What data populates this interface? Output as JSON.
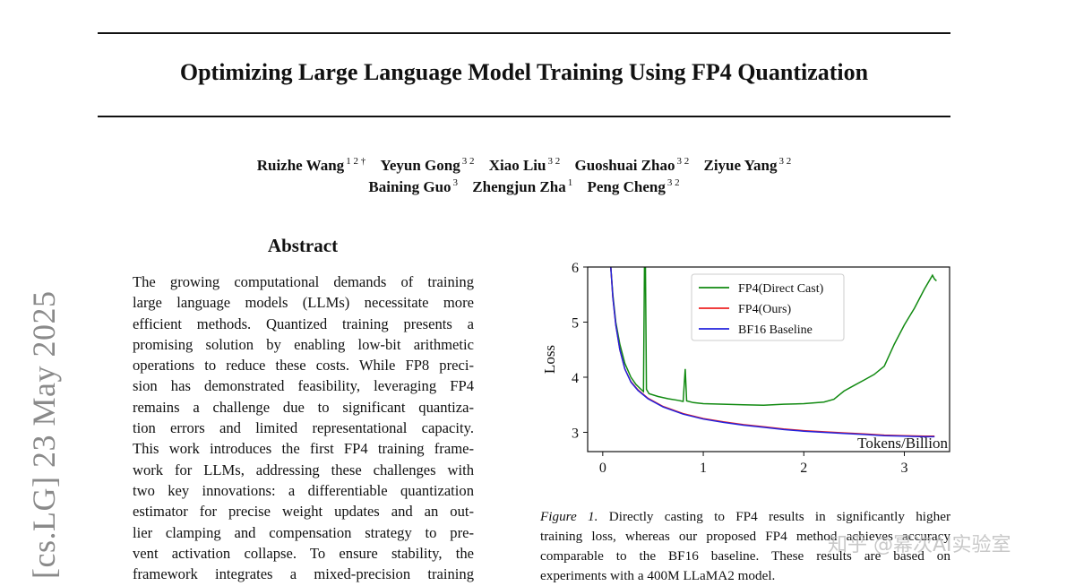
{
  "paper": {
    "title": "Optimizing Large Language Model Training Using FP4 Quantization",
    "authors_line1": [
      {
        "name": "Ruizhe Wang",
        "aff": "1 2 †"
      },
      {
        "name": "Yeyun Gong",
        "aff": "3 2"
      },
      {
        "name": "Xiao Liu",
        "aff": "3 2"
      },
      {
        "name": "Guoshuai Zhao",
        "aff": "3 2"
      },
      {
        "name": "Ziyue Yang",
        "aff": "3 2"
      }
    ],
    "authors_line2": [
      {
        "name": "Baining Guo",
        "aff": "3"
      },
      {
        "name": "Zhengjun Zha",
        "aff": "1"
      },
      {
        "name": "Peng Cheng",
        "aff": "3 2"
      }
    ],
    "arxiv_stamp": "[cs.LG]   23 May 2025",
    "abstract_heading": "Abstract",
    "abstract_lines": [
      "The growing computational demands of training",
      "large language models (LLMs) necessitate more",
      "efficient methods. Quantized training presents a",
      "promising solution by enabling low-bit arithmetic",
      "operations to reduce these costs. While FP8 preci-",
      "sion has demonstrated feasibility, leveraging FP4",
      "remains a challenge due to significant quantiza-",
      "tion errors and limited representational capacity.",
      "This work introduces the first FP4 training frame-",
      "work for LLMs, addressing these challenges with",
      "two key innovations: a differentiable quantization",
      "estimator for precise weight updates and an out-",
      "lier clamping and compensation strategy to pre-",
      "vent activation collapse. To ensure stability, the",
      "framework integrates a mixed-precision training"
    ],
    "caption": {
      "label": "Figure 1.",
      "lines": [
        "Directly casting to FP4 results in significantly higher",
        "training loss, whereas our proposed FP4 method achieves accuracy",
        "comparable to the BF16 baseline.  These results are based on",
        "experiments with a 400M LLaMA2 model."
      ]
    },
    "watermark": "知乎 @幂次AI实验室"
  },
  "chart_data": {
    "type": "line",
    "xlabel": "Tokens/Billion",
    "ylabel": "Loss",
    "xlim": [
      -0.15,
      3.45
    ],
    "ylim": [
      2.65,
      6.0
    ],
    "xticks": [
      0,
      1,
      2,
      3
    ],
    "yticks": [
      3,
      4,
      5,
      6
    ],
    "grid": false,
    "legend_position": "top-center",
    "series": [
      {
        "name": "FP4(Direct Cast)",
        "color": "#118a11",
        "points": [
          [
            0.08,
            6.0
          ],
          [
            0.1,
            5.5
          ],
          [
            0.13,
            5.0
          ],
          [
            0.17,
            4.6
          ],
          [
            0.22,
            4.25
          ],
          [
            0.28,
            4.0
          ],
          [
            0.33,
            3.87
          ],
          [
            0.38,
            3.78
          ],
          [
            0.405,
            3.74
          ],
          [
            0.415,
            6.0
          ],
          [
            0.425,
            6.0
          ],
          [
            0.435,
            3.78
          ],
          [
            0.46,
            3.7
          ],
          [
            0.55,
            3.65
          ],
          [
            0.65,
            3.61
          ],
          [
            0.75,
            3.58
          ],
          [
            0.8,
            3.56
          ],
          [
            0.82,
            4.15
          ],
          [
            0.835,
            3.57
          ],
          [
            0.9,
            3.54
          ],
          [
            1.0,
            3.52
          ],
          [
            1.2,
            3.51
          ],
          [
            1.4,
            3.5
          ],
          [
            1.6,
            3.49
          ],
          [
            1.8,
            3.51
          ],
          [
            2.0,
            3.52
          ],
          [
            2.2,
            3.55
          ],
          [
            2.3,
            3.6
          ],
          [
            2.4,
            3.75
          ],
          [
            2.5,
            3.85
          ],
          [
            2.6,
            3.95
          ],
          [
            2.7,
            4.05
          ],
          [
            2.8,
            4.2
          ],
          [
            2.9,
            4.6
          ],
          [
            3.0,
            4.95
          ],
          [
            3.1,
            5.25
          ],
          [
            3.2,
            5.6
          ],
          [
            3.28,
            5.85
          ],
          [
            3.3,
            5.78
          ],
          [
            3.32,
            5.75
          ]
        ]
      },
      {
        "name": "FP4(Ours)",
        "color": "#ee2222",
        "points": [
          [
            0.08,
            6.0
          ],
          [
            0.1,
            5.45
          ],
          [
            0.13,
            4.95
          ],
          [
            0.17,
            4.5
          ],
          [
            0.22,
            4.15
          ],
          [
            0.28,
            3.92
          ],
          [
            0.35,
            3.77
          ],
          [
            0.45,
            3.62
          ],
          [
            0.6,
            3.47
          ],
          [
            0.8,
            3.34
          ],
          [
            1.0,
            3.25
          ],
          [
            1.2,
            3.19
          ],
          [
            1.4,
            3.14
          ],
          [
            1.6,
            3.1
          ],
          [
            1.8,
            3.06
          ],
          [
            2.0,
            3.03
          ],
          [
            2.2,
            3.01
          ],
          [
            2.4,
            2.99
          ],
          [
            2.6,
            2.97
          ],
          [
            2.8,
            2.95
          ],
          [
            3.0,
            2.94
          ],
          [
            3.2,
            2.93
          ],
          [
            3.3,
            2.93
          ]
        ]
      },
      {
        "name": "BF16 Baseline",
        "color": "#2222dd",
        "points": [
          [
            0.08,
            6.0
          ],
          [
            0.1,
            5.45
          ],
          [
            0.13,
            4.95
          ],
          [
            0.17,
            4.5
          ],
          [
            0.22,
            4.15
          ],
          [
            0.28,
            3.91
          ],
          [
            0.35,
            3.76
          ],
          [
            0.45,
            3.61
          ],
          [
            0.6,
            3.46
          ],
          [
            0.8,
            3.33
          ],
          [
            1.0,
            3.24
          ],
          [
            1.2,
            3.18
          ],
          [
            1.4,
            3.13
          ],
          [
            1.6,
            3.09
          ],
          [
            1.8,
            3.05
          ],
          [
            2.0,
            3.02
          ],
          [
            2.2,
            3.0
          ],
          [
            2.4,
            2.98
          ],
          [
            2.6,
            2.96
          ],
          [
            2.8,
            2.94
          ],
          [
            3.0,
            2.93
          ],
          [
            3.2,
            2.92
          ],
          [
            3.3,
            2.92
          ]
        ]
      }
    ]
  }
}
